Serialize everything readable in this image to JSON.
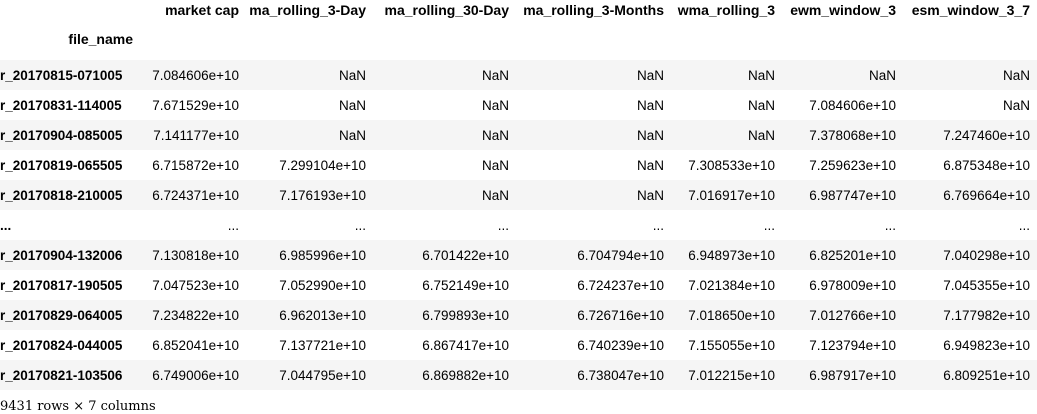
{
  "table": {
    "columns": [
      "market cap",
      "ma_rolling_3-Day",
      "ma_rolling_30-Day",
      "ma_rolling_3-Months",
      "wma_rolling_3",
      "ewm_window_3",
      "esm_window_3_7"
    ],
    "index_name": "file_name",
    "rows": [
      {
        "index": "r_20170815-071005",
        "values": [
          "7.084606e+10",
          "NaN",
          "NaN",
          "NaN",
          "NaN",
          "NaN",
          "NaN"
        ]
      },
      {
        "index": "r_20170831-114005",
        "values": [
          "7.671529e+10",
          "NaN",
          "NaN",
          "NaN",
          "NaN",
          "7.084606e+10",
          "NaN"
        ]
      },
      {
        "index": "r_20170904-085005",
        "values": [
          "7.141177e+10",
          "NaN",
          "NaN",
          "NaN",
          "NaN",
          "7.378068e+10",
          "7.247460e+10"
        ]
      },
      {
        "index": "r_20170819-065505",
        "values": [
          "6.715872e+10",
          "7.299104e+10",
          "NaN",
          "NaN",
          "7.308533e+10",
          "7.259623e+10",
          "6.875348e+10"
        ]
      },
      {
        "index": "r_20170818-210005",
        "values": [
          "6.724371e+10",
          "7.176193e+10",
          "NaN",
          "NaN",
          "7.016917e+10",
          "6.987747e+10",
          "6.769664e+10"
        ]
      },
      {
        "index": "...",
        "values": [
          "...",
          "...",
          "...",
          "...",
          "...",
          "...",
          "..."
        ]
      },
      {
        "index": "r_20170904-132006",
        "values": [
          "7.130818e+10",
          "6.985996e+10",
          "6.701422e+10",
          "6.704794e+10",
          "6.948973e+10",
          "6.825201e+10",
          "7.040298e+10"
        ]
      },
      {
        "index": "r_20170817-190505",
        "values": [
          "7.047523e+10",
          "7.052990e+10",
          "6.752149e+10",
          "6.724237e+10",
          "7.021384e+10",
          "6.978009e+10",
          "7.045355e+10"
        ]
      },
      {
        "index": "r_20170829-064005",
        "values": [
          "7.234822e+10",
          "6.962013e+10",
          "6.799893e+10",
          "6.726716e+10",
          "7.018650e+10",
          "7.012766e+10",
          "7.177982e+10"
        ]
      },
      {
        "index": "r_20170824-044005",
        "values": [
          "6.852041e+10",
          "7.137721e+10",
          "6.867417e+10",
          "6.740239e+10",
          "7.155055e+10",
          "7.123794e+10",
          "6.949823e+10"
        ]
      },
      {
        "index": "r_20170821-103506",
        "values": [
          "6.749006e+10",
          "7.044795e+10",
          "6.869882e+10",
          "6.738047e+10",
          "7.012215e+10",
          "6.987917e+10",
          "6.809251e+10"
        ]
      }
    ]
  },
  "shape_note": "9431 rows × 7 columns"
}
